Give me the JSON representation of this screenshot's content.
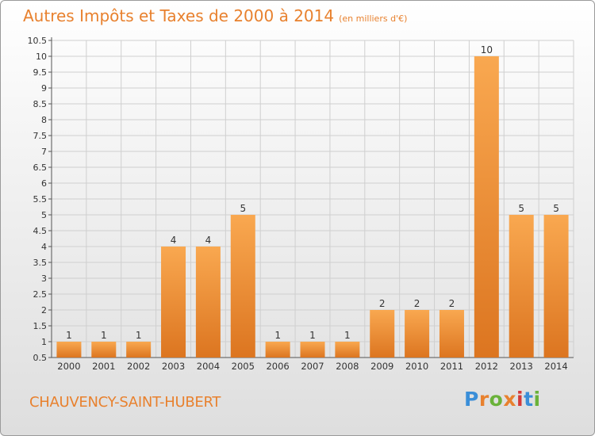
{
  "header": {
    "title": "Autres Impôts et Taxes de 2000 à 2014",
    "unit": "(en milliers d'€)"
  },
  "footer": {
    "commune": "CHAUVENCY-SAINT-HUBERT",
    "logo_text": "Proxiti",
    "logo_colors": [
      "#3a8ed8",
      "#e8812e",
      "#6ab23a",
      "#e8812e",
      "#d33a3a",
      "#3a8ed8",
      "#6ab23a"
    ]
  },
  "colors": {
    "accent": "#e8812e",
    "bar_top": "#f9a850",
    "bar_bottom": "#dc7520",
    "grid": "#cfcfcf",
    "axis": "#555555",
    "text": "#333333"
  },
  "chart_data": {
    "type": "bar",
    "categories": [
      "2000",
      "2001",
      "2002",
      "2003",
      "2004",
      "2005",
      "2006",
      "2007",
      "2008",
      "2009",
      "2010",
      "2011",
      "2012",
      "2013",
      "2014"
    ],
    "values": [
      1,
      1,
      1,
      4,
      4,
      5,
      1,
      1,
      1,
      2,
      2,
      2,
      10,
      5,
      5
    ],
    "data_labels": [
      "1",
      "1",
      "1",
      "4",
      "4",
      "5",
      "1",
      "1",
      "1",
      "2",
      "2",
      "2",
      "10",
      "5",
      "5"
    ],
    "ylim": [
      0.5,
      10.5
    ],
    "yticks": [
      0.5,
      1,
      1.5,
      2,
      2.5,
      3,
      3.5,
      4,
      4.5,
      5,
      5.5,
      6,
      6.5,
      7,
      7.5,
      8,
      8.5,
      9,
      9.5,
      10,
      10.5
    ],
    "ytick_labels": [
      "0.5",
      "1",
      "1.5",
      "2",
      "2.5",
      "3",
      "3.5",
      "4",
      "4.5",
      "5",
      "5.5",
      "6",
      "6.5",
      "7",
      "7.5",
      "8",
      "8.5",
      "9",
      "9.5",
      "10",
      "10.5"
    ],
    "grid": true,
    "legend": "none"
  }
}
